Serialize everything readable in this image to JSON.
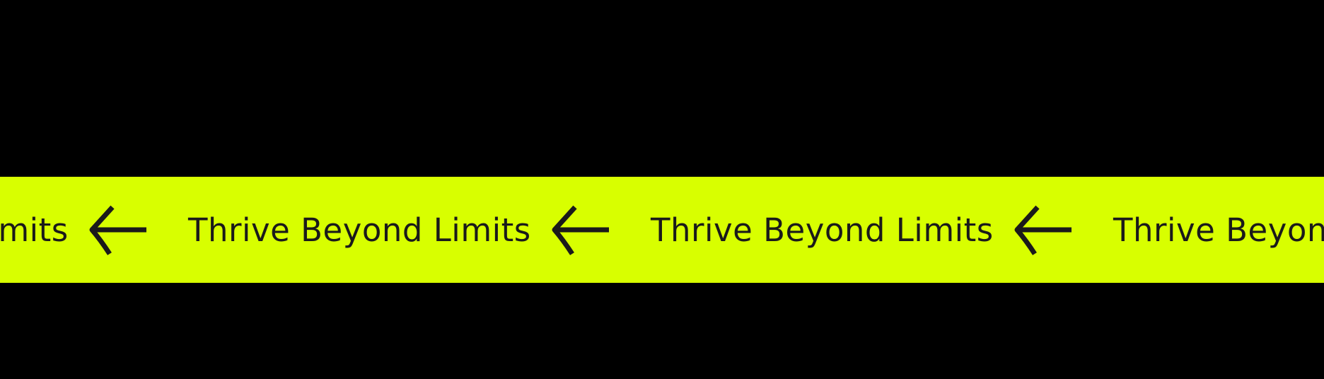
{
  "banner": {
    "background_color": "#D8FF00",
    "page_background": "#000000",
    "text_color": "#1A1A1A",
    "items": [
      {
        "text": "Thrive Beyond Limits",
        "icon": "arrow-left-icon"
      },
      {
        "text": "Thrive Beyond Limits",
        "icon": "arrow-left-icon"
      },
      {
        "text": "Thrive Beyond Limits",
        "icon": "arrow-left-icon"
      },
      {
        "text": "Thrive Beyond Limits",
        "icon": "arrow-left-icon"
      }
    ]
  }
}
